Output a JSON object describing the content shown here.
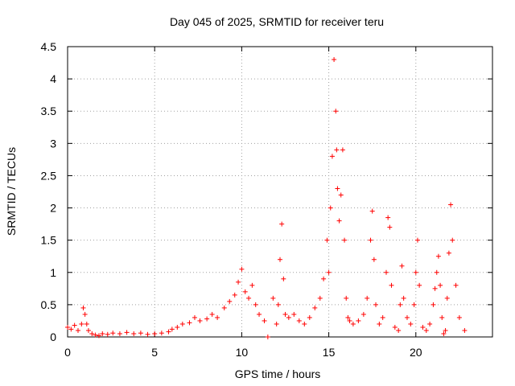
{
  "chart_data": {
    "type": "scatter",
    "title": "Day 045 of 2025, SRMTID for receiver teru",
    "xlabel": "GPS time / hours",
    "ylabel": "SRMTID / TECUs",
    "xlim": [
      0,
      24.4
    ],
    "ylim": [
      0,
      4.5
    ],
    "xticks": [
      "0",
      "5",
      "10",
      "15",
      "20"
    ],
    "xtick_values": [
      0,
      5,
      10,
      15,
      20
    ],
    "yticks": [
      "0",
      "0.5",
      "1",
      "1.5",
      "2",
      "2.5",
      "3",
      "3.5",
      "4",
      "4.5"
    ],
    "ytick_values": [
      0,
      0.5,
      1,
      1.5,
      2,
      2.5,
      3,
      3.5,
      4,
      4.5
    ],
    "grid": true,
    "marker": "+",
    "series": [
      {
        "name": "SRMTID",
        "color": "#ff0000",
        "x": [
          0.0,
          0.2,
          0.4,
          0.6,
          0.8,
          0.9,
          1.0,
          1.1,
          1.2,
          1.4,
          1.6,
          1.8,
          2.0,
          2.3,
          2.6,
          3.0,
          3.4,
          3.8,
          4.2,
          4.6,
          5.0,
          5.4,
          5.8,
          6.0,
          6.3,
          6.6,
          7.0,
          7.3,
          7.6,
          8.0,
          8.3,
          8.6,
          9.0,
          9.3,
          9.6,
          9.8,
          10.0,
          10.2,
          10.4,
          10.6,
          10.8,
          11.0,
          11.3,
          11.5,
          11.8,
          12.0,
          12.1,
          12.2,
          12.3,
          12.4,
          12.5,
          12.7,
          13.0,
          13.3,
          13.6,
          13.9,
          14.2,
          14.5,
          14.7,
          14.9,
          15.0,
          15.1,
          15.2,
          15.3,
          15.4,
          15.45,
          15.5,
          15.6,
          15.7,
          15.8,
          15.9,
          16.0,
          16.1,
          16.2,
          16.4,
          16.7,
          17.0,
          17.2,
          17.4,
          17.5,
          17.6,
          17.7,
          17.9,
          18.1,
          18.3,
          18.4,
          18.5,
          18.6,
          18.8,
          19.0,
          19.1,
          19.2,
          19.3,
          19.5,
          19.7,
          19.9,
          20.0,
          20.1,
          20.2,
          20.4,
          20.6,
          20.8,
          21.0,
          21.1,
          21.2,
          21.3,
          21.4,
          21.5,
          21.6,
          21.7,
          21.8,
          21.9,
          22.0,
          22.1,
          22.3,
          22.5,
          22.8
        ],
        "y": [
          0.15,
          0.12,
          0.18,
          0.1,
          0.2,
          0.45,
          0.35,
          0.2,
          0.1,
          0.05,
          0.03,
          0.02,
          0.05,
          0.04,
          0.06,
          0.05,
          0.07,
          0.05,
          0.06,
          0.04,
          0.05,
          0.06,
          0.08,
          0.12,
          0.15,
          0.2,
          0.22,
          0.3,
          0.25,
          0.28,
          0.35,
          0.3,
          0.45,
          0.55,
          0.65,
          0.85,
          1.05,
          0.7,
          0.6,
          0.8,
          0.5,
          0.35,
          0.25,
          0.0,
          0.6,
          0.2,
          0.5,
          1.2,
          1.75,
          0.9,
          0.35,
          0.3,
          0.35,
          0.25,
          0.2,
          0.3,
          0.45,
          0.6,
          0.9,
          1.5,
          1.0,
          2.0,
          2.8,
          4.3,
          3.5,
          2.9,
          2.3,
          1.8,
          2.2,
          2.9,
          1.5,
          0.6,
          0.3,
          0.25,
          0.2,
          0.25,
          0.35,
          0.6,
          1.5,
          1.95,
          1.2,
          0.5,
          0.2,
          0.3,
          1.0,
          1.85,
          1.7,
          0.8,
          0.15,
          0.1,
          0.5,
          1.1,
          0.6,
          0.3,
          0.2,
          0.5,
          1.0,
          1.5,
          0.8,
          0.15,
          0.1,
          0.2,
          0.5,
          0.75,
          1.0,
          1.25,
          0.8,
          0.3,
          0.05,
          0.1,
          0.6,
          1.3,
          2.05,
          1.5,
          0.8,
          0.3,
          0.1
        ]
      }
    ]
  }
}
